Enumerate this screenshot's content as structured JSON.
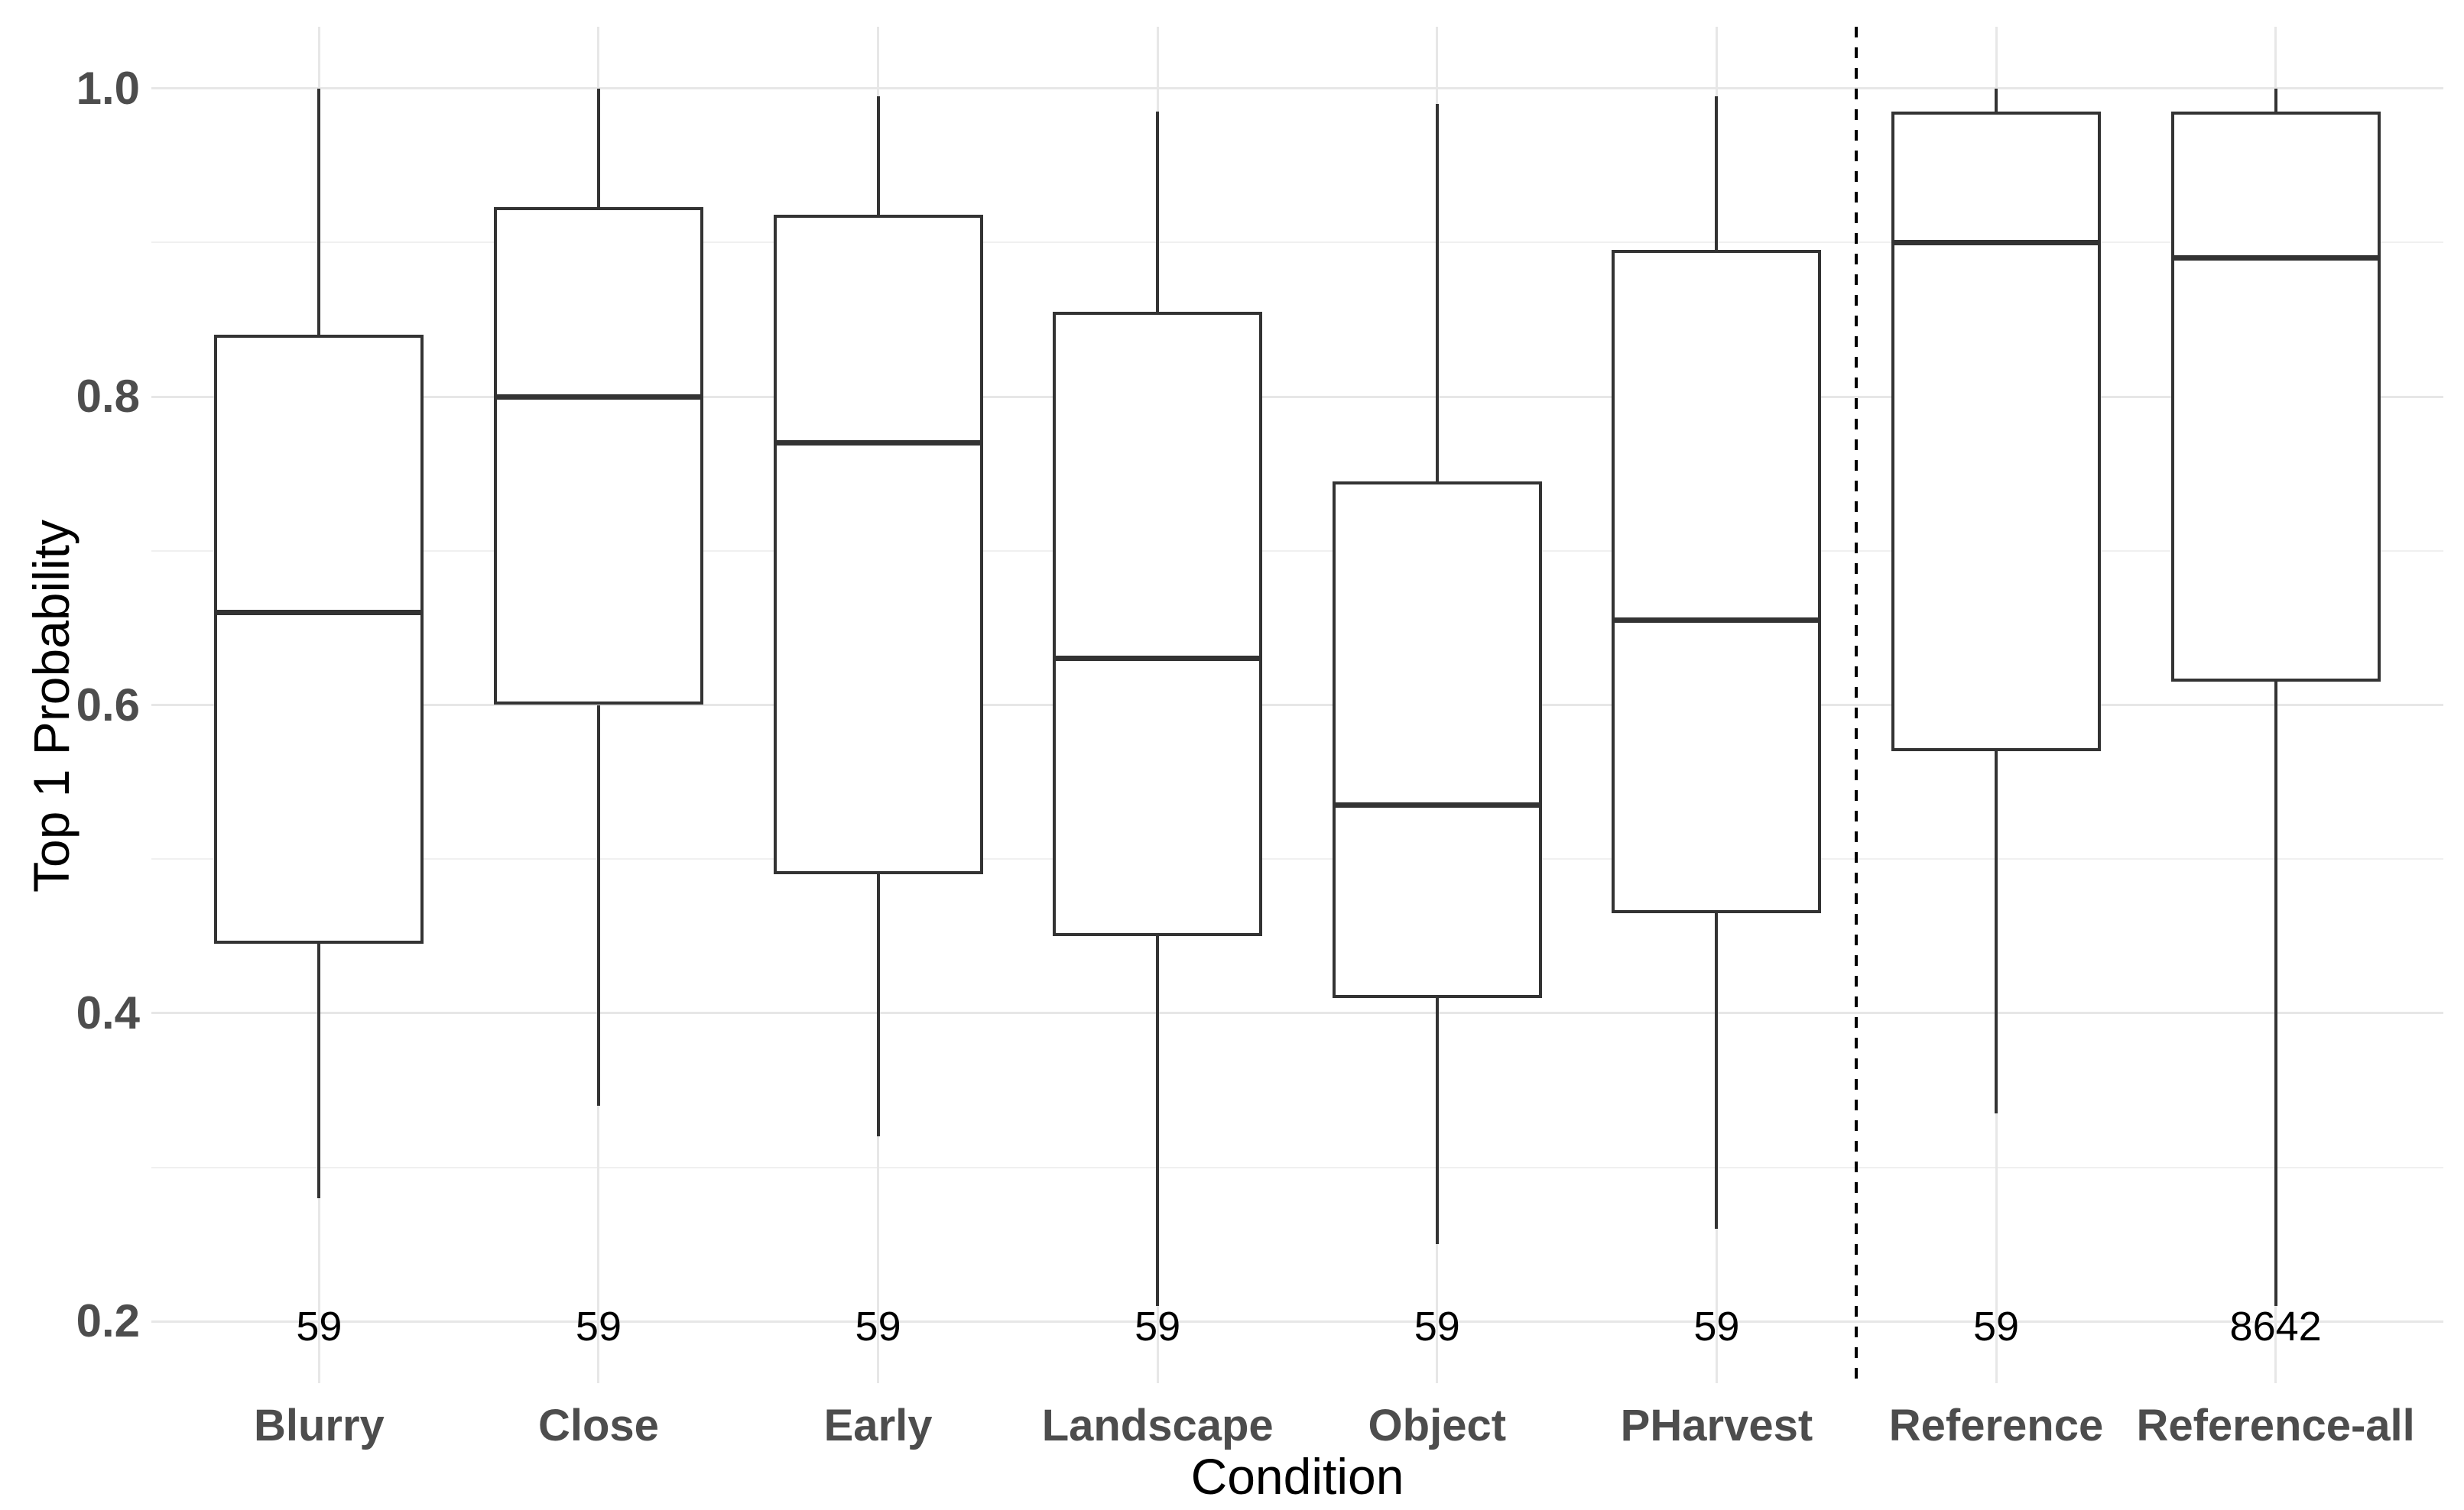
{
  "chart_data": {
    "type": "boxplot",
    "title": "",
    "xlabel": "Condition",
    "ylabel": "Top 1 Probability",
    "ylim": [
      0.16,
      1.04
    ],
    "ytick_values": [
      0.2,
      0.4,
      0.6,
      0.8,
      1.0
    ],
    "ytick_labels": [
      "0.2",
      "0.4",
      "0.6",
      "0.8",
      "1.0"
    ],
    "yminor_values": [
      0.3,
      0.5,
      0.7,
      0.9
    ],
    "grid": "horizontal major+minor lines, one vertical gridline per category",
    "legend_position": "none",
    "separator": {
      "style": "dashed-vertical-line",
      "between": [
        "PHarvest",
        "Reference"
      ]
    },
    "count_labels_at_y": 0.2,
    "series": [
      {
        "label": "Blurry",
        "n": "59",
        "whisker_low": 0.28,
        "q1": 0.445,
        "median": 0.66,
        "q3": 0.84,
        "whisker_high": 1.0
      },
      {
        "label": "Close",
        "n": "59",
        "whisker_low": 0.34,
        "q1": 0.6,
        "median": 0.8,
        "q3": 0.923,
        "whisker_high": 1.0
      },
      {
        "label": "Early",
        "n": "59",
        "whisker_low": 0.32,
        "q1": 0.49,
        "median": 0.77,
        "q3": 0.918,
        "whisker_high": 0.995
      },
      {
        "label": "Landscape",
        "n": "59",
        "whisker_low": 0.21,
        "q1": 0.45,
        "median": 0.63,
        "q3": 0.855,
        "whisker_high": 0.985
      },
      {
        "label": "Object",
        "n": "59",
        "whisker_low": 0.25,
        "q1": 0.41,
        "median": 0.535,
        "q3": 0.745,
        "whisker_high": 0.99
      },
      {
        "label": "PHarvest",
        "n": "59",
        "whisker_low": 0.26,
        "q1": 0.465,
        "median": 0.655,
        "q3": 0.895,
        "whisker_high": 0.995
      },
      {
        "label": "Reference",
        "n": "59",
        "whisker_low": 0.335,
        "q1": 0.57,
        "median": 0.9,
        "q3": 0.985,
        "whisker_high": 1.0
      },
      {
        "label": "Reference-all",
        "n": "8642",
        "whisker_low": 0.21,
        "q1": 0.615,
        "median": 0.89,
        "q3": 0.985,
        "whisker_high": 1.0
      }
    ]
  },
  "colors": {
    "background": "#ffffff",
    "box_stroke": "#333333",
    "median_stroke": "#333333",
    "grid_major": "#e7e7e7",
    "grid_minor": "#f0f0f0",
    "category_grid": "#e7e7e7",
    "axis_text": "#4d4d4d",
    "title_text": "#000000",
    "separator": "#000000"
  }
}
